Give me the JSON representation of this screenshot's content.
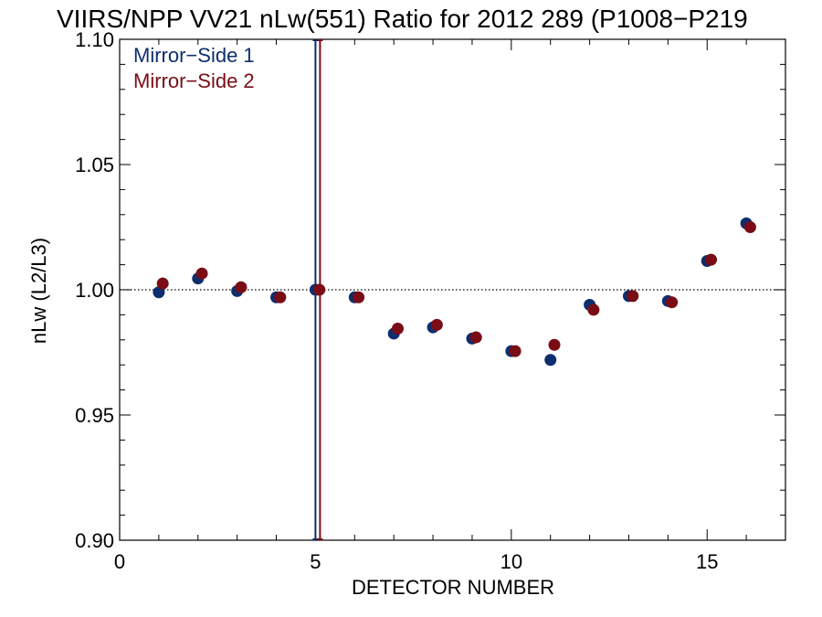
{
  "chart_data": {
    "type": "scatter",
    "title": "VIIRS/NPP VV21 nLw(551) Ratio for 2012 289 (P1008−P219",
    "xlabel": "DETECTOR NUMBER",
    "ylabel": "nLw (L2/L3)",
    "xlim": [
      0,
      17
    ],
    "ylim": [
      0.9,
      1.1
    ],
    "x_ticks": [
      0,
      5,
      10,
      15
    ],
    "x_tick_labels": [
      "0",
      "5",
      "10",
      "15"
    ],
    "y_ticks": [
      0.9,
      0.95,
      1.0,
      1.05,
      1.1
    ],
    "y_tick_labels": [
      "0.90",
      "0.95",
      "1.00",
      "1.05",
      "1.10"
    ],
    "reference_line": {
      "y": 1.0,
      "style": "dotted"
    },
    "marker_lines": [
      {
        "x": 5,
        "series": "Mirror−Side 1"
      },
      {
        "x": 5,
        "series": "Mirror−Side 2"
      }
    ],
    "legend_position": "top-left",
    "grid": false,
    "series": [
      {
        "name": "Mirror−Side 1",
        "color": "#0d2e6e",
        "x": [
          1,
          2,
          3,
          4,
          5,
          6,
          7,
          8,
          9,
          10,
          11,
          12,
          13,
          14,
          15,
          16
        ],
        "y": [
          0.999,
          1.0045,
          0.9995,
          0.997,
          1.0,
          0.997,
          0.9825,
          0.985,
          0.9805,
          0.9755,
          0.972,
          0.994,
          0.9975,
          0.9955,
          1.0115,
          1.0265
        ]
      },
      {
        "name": "Mirror−Side 2",
        "color": "#7a0c16",
        "x": [
          1.1,
          2.1,
          3.1,
          4.1,
          5.1,
          6.1,
          7.1,
          8.1,
          9.1,
          10.1,
          11.1,
          12.1,
          13.1,
          14.1,
          15.1,
          16.1
        ],
        "y": [
          1.0025,
          1.0065,
          1.001,
          0.997,
          1.0,
          0.997,
          0.9845,
          0.986,
          0.981,
          0.9755,
          0.978,
          0.992,
          0.9975,
          0.995,
          1.012,
          1.025
        ]
      }
    ]
  }
}
